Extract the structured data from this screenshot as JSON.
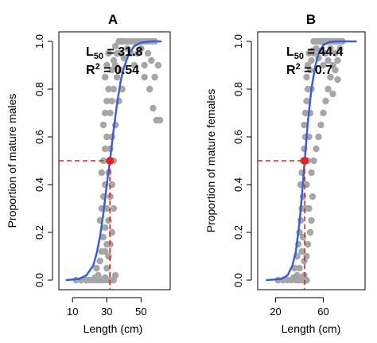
{
  "chart_data": [
    {
      "type": "scatter",
      "title": "A",
      "xlabel": "Length (cm)",
      "ylabel": "Proportion of mature males",
      "xlim": [
        2,
        67
      ],
      "ylim": [
        -0.04,
        1.04
      ],
      "xticks": [
        10,
        30,
        50
      ],
      "yticks": [
        0.0,
        0.2,
        0.4,
        0.6,
        0.8,
        1.0
      ],
      "xtick_labels": [
        "10",
        "30",
        "50"
      ],
      "ytick_labels": [
        "0.0",
        "0.2",
        "0.4",
        "0.6",
        "0.8",
        "1.0"
      ],
      "grid": false,
      "l50": 31.8,
      "r2": 0.54,
      "annotation": {
        "l_letter": "L",
        "l_sub": "50",
        "l_rest": " = 31.8",
        "r_letter": "R",
        "r_sup": "2",
        "r_rest": " = 0.54"
      },
      "fit_curve": {
        "x": [
          6,
          14,
          18,
          22,
          24,
          26,
          28,
          30,
          31.8,
          34,
          36,
          38,
          40,
          43,
          46,
          50,
          56,
          62
        ],
        "y": [
          0.0,
          0.005,
          0.02,
          0.06,
          0.11,
          0.18,
          0.28,
          0.4,
          0.5,
          0.63,
          0.74,
          0.83,
          0.89,
          0.95,
          0.98,
          0.995,
          1.0,
          1.0
        ]
      },
      "points": [
        {
          "x": 12,
          "y": 0.0
        },
        {
          "x": 15,
          "y": 0.0
        },
        {
          "x": 18,
          "y": 0.0
        },
        {
          "x": 20,
          "y": 0.0
        },
        {
          "x": 22,
          "y": 0.0
        },
        {
          "x": 23,
          "y": 0.01
        },
        {
          "x": 24,
          "y": 0.0
        },
        {
          "x": 25,
          "y": 0.02
        },
        {
          "x": 26,
          "y": 0.0
        },
        {
          "x": 27,
          "y": 0.0
        },
        {
          "x": 28,
          "y": 0.0
        },
        {
          "x": 29,
          "y": 0.01
        },
        {
          "x": 30,
          "y": 0.0
        },
        {
          "x": 24,
          "y": 0.05
        },
        {
          "x": 26,
          "y": 0.08
        },
        {
          "x": 27,
          "y": 0.12
        },
        {
          "x": 28,
          "y": 0.18
        },
        {
          "x": 29,
          "y": 0.22
        },
        {
          "x": 26,
          "y": 0.25
        },
        {
          "x": 27,
          "y": 0.3
        },
        {
          "x": 28,
          "y": 0.35
        },
        {
          "x": 29,
          "y": 0.4
        },
        {
          "x": 27,
          "y": 0.45
        },
        {
          "x": 28,
          "y": 0.5
        },
        {
          "x": 29,
          "y": 0.55
        },
        {
          "x": 30,
          "y": 0.6
        },
        {
          "x": 28,
          "y": 0.65
        },
        {
          "x": 29,
          "y": 0.7
        },
        {
          "x": 30,
          "y": 0.75
        },
        {
          "x": 31,
          "y": 0.8
        },
        {
          "x": 29,
          "y": 0.85
        },
        {
          "x": 30,
          "y": 0.9
        },
        {
          "x": 31,
          "y": 0.95
        },
        {
          "x": 30,
          "y": 0.3
        },
        {
          "x": 31,
          "y": 0.25
        },
        {
          "x": 32,
          "y": 0.35
        },
        {
          "x": 31,
          "y": 0.45
        },
        {
          "x": 32,
          "y": 0.55
        },
        {
          "x": 33,
          "y": 0.6
        },
        {
          "x": 32,
          "y": 0.7
        },
        {
          "x": 33,
          "y": 0.75
        },
        {
          "x": 34,
          "y": 0.8
        },
        {
          "x": 33,
          "y": 0.88
        },
        {
          "x": 34,
          "y": 0.92
        },
        {
          "x": 35,
          "y": 0.9
        },
        {
          "x": 36,
          "y": 0.95
        },
        {
          "x": 35,
          "y": 0.98
        },
        {
          "x": 37,
          "y": 1.0
        },
        {
          "x": 38,
          "y": 1.0
        },
        {
          "x": 39,
          "y": 1.0
        },
        {
          "x": 40,
          "y": 1.0
        },
        {
          "x": 42,
          "y": 1.0
        },
        {
          "x": 44,
          "y": 1.0
        },
        {
          "x": 46,
          "y": 1.0
        },
        {
          "x": 48,
          "y": 1.0
        },
        {
          "x": 50,
          "y": 1.0
        },
        {
          "x": 52,
          "y": 1.0
        },
        {
          "x": 54,
          "y": 1.0
        },
        {
          "x": 56,
          "y": 1.0
        },
        {
          "x": 58,
          "y": 1.0
        },
        {
          "x": 38,
          "y": 0.95
        },
        {
          "x": 40,
          "y": 0.93
        },
        {
          "x": 42,
          "y": 0.97
        },
        {
          "x": 44,
          "y": 0.95
        },
        {
          "x": 46,
          "y": 0.9
        },
        {
          "x": 48,
          "y": 0.95
        },
        {
          "x": 50,
          "y": 0.97
        },
        {
          "x": 52,
          "y": 0.9
        },
        {
          "x": 54,
          "y": 0.95
        },
        {
          "x": 56,
          "y": 0.92
        },
        {
          "x": 52,
          "y": 0.85
        },
        {
          "x": 55,
          "y": 0.8
        },
        {
          "x": 58,
          "y": 0.85
        },
        {
          "x": 60,
          "y": 0.9
        },
        {
          "x": 57,
          "y": 0.72
        },
        {
          "x": 59,
          "y": 0.67
        },
        {
          "x": 61,
          "y": 0.67
        },
        {
          "x": 36,
          "y": 0.85
        },
        {
          "x": 38,
          "y": 0.88
        },
        {
          "x": 37,
          "y": 0.75
        },
        {
          "x": 39,
          "y": 0.8
        },
        {
          "x": 33,
          "y": 0.4
        },
        {
          "x": 34,
          "y": 0.5
        },
        {
          "x": 35,
          "y": 0.65
        },
        {
          "x": 34,
          "y": 0.3
        },
        {
          "x": 33,
          "y": 0.2
        },
        {
          "x": 32,
          "y": 0.15
        },
        {
          "x": 31,
          "y": 0.1
        },
        {
          "x": 30,
          "y": 0.05
        },
        {
          "x": 32,
          "y": 0.0
        },
        {
          "x": 33,
          "y": 0.0
        },
        {
          "x": 34,
          "y": 0.0
        },
        {
          "x": 35,
          "y": 0.02
        },
        {
          "x": 29,
          "y": 0.12
        },
        {
          "x": 30,
          "y": 0.15
        }
      ]
    },
    {
      "type": "scatter",
      "title": "B",
      "xlabel": "Length (cm)",
      "ylabel": "Proportion of mature females",
      "xlim": [
        5,
        95
      ],
      "ylim": [
        -0.04,
        1.04
      ],
      "xticks": [
        20,
        60
      ],
      "yticks": [
        0.0,
        0.2,
        0.4,
        0.6,
        0.8,
        1.0
      ],
      "xtick_labels": [
        "20",
        "60"
      ],
      "ytick_labels": [
        "0.0",
        "0.2",
        "0.4",
        "0.6",
        "0.8",
        "1.0"
      ],
      "grid": false,
      "l50": 44.4,
      "r2": 0.7,
      "annotation": {
        "l_letter": "L",
        "l_sub": "50",
        "l_rest": " = 44.4",
        "r_letter": "R",
        "r_sup": "2",
        "r_rest": " = 0.7"
      },
      "fit_curve": {
        "x": [
          12,
          25,
          30,
          34,
          37,
          40,
          42,
          44.4,
          47,
          50,
          53,
          56,
          60,
          65,
          72,
          80,
          88
        ],
        "y": [
          0.0,
          0.005,
          0.02,
          0.06,
          0.12,
          0.24,
          0.35,
          0.5,
          0.66,
          0.8,
          0.89,
          0.95,
          0.985,
          0.997,
          1.0,
          1.0,
          1.0
        ]
      },
      "points": [
        {
          "x": 22,
          "y": 0.0
        },
        {
          "x": 26,
          "y": 0.0
        },
        {
          "x": 30,
          "y": 0.0
        },
        {
          "x": 33,
          "y": 0.0
        },
        {
          "x": 35,
          "y": 0.01
        },
        {
          "x": 37,
          "y": 0.0
        },
        {
          "x": 38,
          "y": 0.02
        },
        {
          "x": 39,
          "y": 0.0
        },
        {
          "x": 40,
          "y": 0.0
        },
        {
          "x": 41,
          "y": 0.01
        },
        {
          "x": 42,
          "y": 0.0
        },
        {
          "x": 43,
          "y": 0.0
        },
        {
          "x": 44,
          "y": 0.02
        },
        {
          "x": 45,
          "y": 0.0
        },
        {
          "x": 46,
          "y": 0.0
        },
        {
          "x": 36,
          "y": 0.05
        },
        {
          "x": 38,
          "y": 0.1
        },
        {
          "x": 39,
          "y": 0.15
        },
        {
          "x": 40,
          "y": 0.2
        },
        {
          "x": 41,
          "y": 0.25
        },
        {
          "x": 42,
          "y": 0.3
        },
        {
          "x": 43,
          "y": 0.35
        },
        {
          "x": 41,
          "y": 0.4
        },
        {
          "x": 42,
          "y": 0.45
        },
        {
          "x": 43,
          "y": 0.5
        },
        {
          "x": 44,
          "y": 0.55
        },
        {
          "x": 45,
          "y": 0.6
        },
        {
          "x": 44,
          "y": 0.65
        },
        {
          "x": 45,
          "y": 0.7
        },
        {
          "x": 46,
          "y": 0.75
        },
        {
          "x": 47,
          "y": 0.8
        },
        {
          "x": 46,
          "y": 0.85
        },
        {
          "x": 47,
          "y": 0.9
        },
        {
          "x": 48,
          "y": 0.95
        },
        {
          "x": 45,
          "y": 0.3
        },
        {
          "x": 46,
          "y": 0.4
        },
        {
          "x": 47,
          "y": 0.5
        },
        {
          "x": 48,
          "y": 0.6
        },
        {
          "x": 49,
          "y": 0.7
        },
        {
          "x": 50,
          "y": 0.8
        },
        {
          "x": 49,
          "y": 0.88
        },
        {
          "x": 50,
          "y": 0.92
        },
        {
          "x": 51,
          "y": 0.96
        },
        {
          "x": 52,
          "y": 1.0
        },
        {
          "x": 54,
          "y": 1.0
        },
        {
          "x": 56,
          "y": 1.0
        },
        {
          "x": 58,
          "y": 1.0
        },
        {
          "x": 60,
          "y": 1.0
        },
        {
          "x": 62,
          "y": 1.0
        },
        {
          "x": 64,
          "y": 1.0
        },
        {
          "x": 66,
          "y": 1.0
        },
        {
          "x": 68,
          "y": 1.0
        },
        {
          "x": 70,
          "y": 1.0
        },
        {
          "x": 72,
          "y": 1.0
        },
        {
          "x": 74,
          "y": 1.0
        },
        {
          "x": 76,
          "y": 1.0
        },
        {
          "x": 52,
          "y": 0.95
        },
        {
          "x": 54,
          "y": 0.97
        },
        {
          "x": 56,
          "y": 0.93
        },
        {
          "x": 58,
          "y": 0.96
        },
        {
          "x": 60,
          "y": 0.9
        },
        {
          "x": 62,
          "y": 0.95
        },
        {
          "x": 64,
          "y": 0.92
        },
        {
          "x": 66,
          "y": 0.97
        },
        {
          "x": 68,
          "y": 0.9
        },
        {
          "x": 70,
          "y": 0.95
        },
        {
          "x": 72,
          "y": 0.92
        },
        {
          "x": 74,
          "y": 0.97
        },
        {
          "x": 66,
          "y": 0.85
        },
        {
          "x": 70,
          "y": 0.88
        },
        {
          "x": 72,
          "y": 0.84
        },
        {
          "x": 64,
          "y": 0.8
        },
        {
          "x": 68,
          "y": 0.78
        },
        {
          "x": 62,
          "y": 0.75
        },
        {
          "x": 60,
          "y": 0.7
        },
        {
          "x": 58,
          "y": 0.65
        },
        {
          "x": 56,
          "y": 0.6
        },
        {
          "x": 54,
          "y": 0.55
        },
        {
          "x": 52,
          "y": 0.5
        },
        {
          "x": 50,
          "y": 0.45
        },
        {
          "x": 48,
          "y": 0.3
        },
        {
          "x": 49,
          "y": 0.2
        },
        {
          "x": 47,
          "y": 0.15
        },
        {
          "x": 46,
          "y": 0.1
        },
        {
          "x": 44,
          "y": 0.08
        },
        {
          "x": 40,
          "y": 0.05
        },
        {
          "x": 42,
          "y": 0.12
        },
        {
          "x": 43,
          "y": 0.18
        },
        {
          "x": 50,
          "y": 0.25
        },
        {
          "x": 51,
          "y": 0.35
        }
      ]
    }
  ]
}
